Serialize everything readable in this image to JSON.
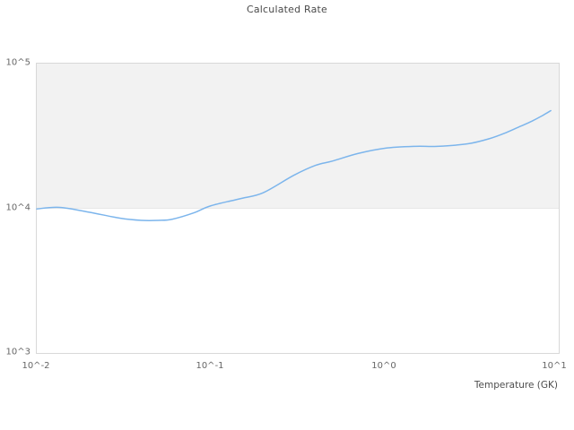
{
  "page": {
    "background": "#ffffff"
  },
  "chart_data": {
    "type": "line",
    "title": "Calculated Rate",
    "xlabel": "Temperature (GK)",
    "ylabel": "",
    "x_scale": "log",
    "y_scale": "log",
    "xlim": [
      0.01,
      10
    ],
    "ylim": [
      1000,
      100000
    ],
    "x_ticks": [
      "10^-2",
      "10^-1",
      "10^0",
      "10^1"
    ],
    "y_ticks": [
      "10^5",
      "10^4",
      "10^3"
    ],
    "grid": false,
    "legend": false,
    "plot_band": {
      "from": 10000,
      "to": 100000,
      "color": "#f2f2f2"
    },
    "series": [
      {
        "name": "Calculated Rate",
        "color": "#7cb5ec",
        "x": [
          0.01,
          0.0135,
          0.02,
          0.03,
          0.04,
          0.05,
          0.06,
          0.08,
          0.1,
          0.15,
          0.2,
          0.3,
          0.4,
          0.5,
          0.7,
          1.0,
          1.5,
          2.0,
          3.0,
          4.0,
          5.0,
          6.0,
          7.0,
          8.0,
          9.0
        ],
        "y": [
          9900,
          10150,
          9400,
          8550,
          8250,
          8250,
          8400,
          9300,
          10400,
          11700,
          12800,
          16900,
          19800,
          21200,
          23900,
          26000,
          26800,
          26800,
          27900,
          30300,
          33400,
          36800,
          40000,
          43500,
          47300
        ]
      }
    ],
    "colors": {
      "line": "#7cb5ec",
      "band": "#f2f2f2",
      "plot_border": "#d8d8d8",
      "tick_text": "#666666",
      "title_text": "#4a4a4a"
    }
  }
}
